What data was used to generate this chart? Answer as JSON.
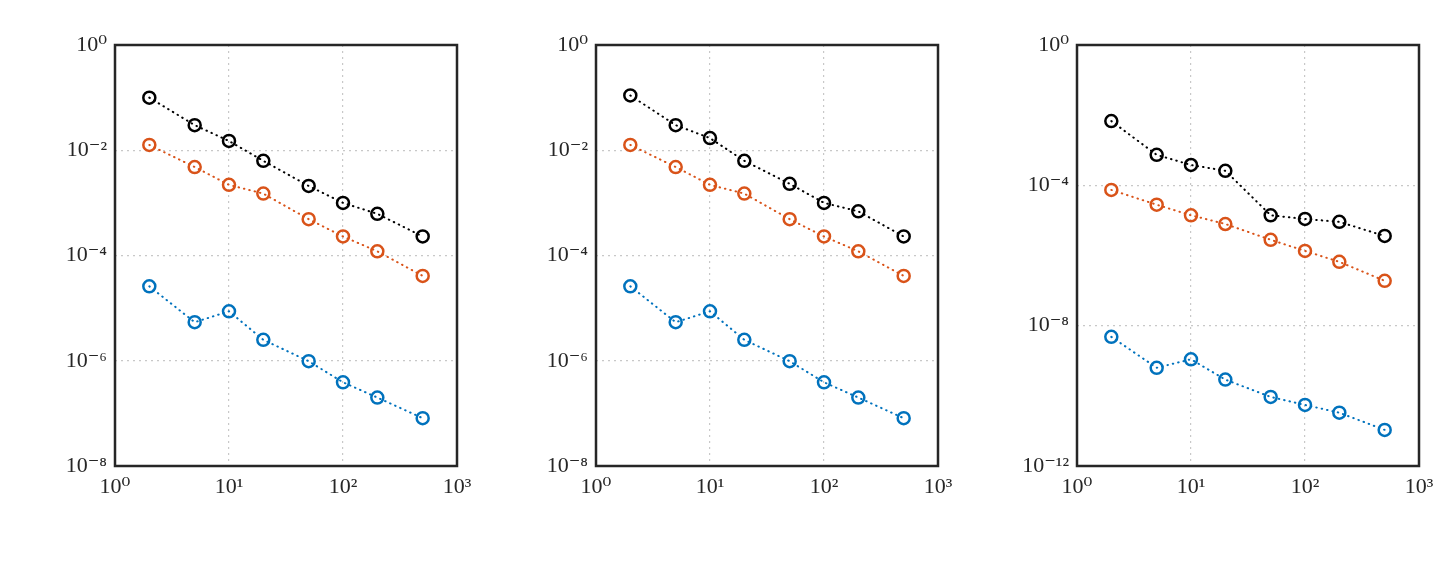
{
  "chart_data": [
    {
      "type": "line",
      "log": "xy",
      "grid": true,
      "marker": "circle",
      "line_style": "dotted",
      "legend": false,
      "x": [
        2,
        5,
        10,
        20,
        50,
        100,
        200,
        500
      ],
      "xlim": [
        1,
        1000
      ],
      "xticks": [
        {
          "value": 1,
          "label": "10⁰"
        },
        {
          "value": 10,
          "label": "10¹"
        },
        {
          "value": 100,
          "label": "10²"
        },
        {
          "value": 1000,
          "label": "10³"
        }
      ],
      "ylim": [
        1e-08,
        1
      ],
      "yticks": [
        {
          "value": 1e-08,
          "label": "10⁻⁸"
        },
        {
          "value": 1e-06,
          "label": "10⁻⁶"
        },
        {
          "value": 0.0001,
          "label": "10⁻⁴"
        },
        {
          "value": 0.01,
          "label": "10⁻²"
        },
        {
          "value": 1,
          "label": "10⁰"
        }
      ],
      "series": [
        {
          "color": "#000000",
          "values": [
            0.1,
            0.03,
            0.015,
            0.0063,
            0.0021,
            0.001,
            0.00062,
            0.00023
          ]
        },
        {
          "color": "#d95319",
          "values": [
            0.0126,
            0.0048,
            0.0022,
            0.0015,
            0.00049,
            0.00023,
            0.00012,
            4.1e-05
          ]
        },
        {
          "color": "#0072bd",
          "values": [
            2.6e-05,
            5.4e-06,
            8.7e-06,
            2.5e-06,
            9.8e-07,
            3.9e-07,
            2e-07,
            8.1e-08
          ]
        }
      ]
    },
    {
      "type": "line",
      "log": "xy",
      "grid": true,
      "marker": "circle",
      "line_style": "dotted",
      "legend": false,
      "x": [
        2,
        5,
        10,
        20,
        50,
        100,
        200,
        500
      ],
      "xlim": [
        1,
        1000
      ],
      "xticks": [
        {
          "value": 1,
          "label": "10⁰"
        },
        {
          "value": 10,
          "label": "10¹"
        },
        {
          "value": 100,
          "label": "10²"
        },
        {
          "value": 1000,
          "label": "10³"
        }
      ],
      "ylim": [
        1e-08,
        1
      ],
      "yticks": [
        {
          "value": 1e-08,
          "label": "10⁻⁸"
        },
        {
          "value": 1e-06,
          "label": "10⁻⁶"
        },
        {
          "value": 0.0001,
          "label": "10⁻⁴"
        },
        {
          "value": 0.01,
          "label": "10⁻²"
        },
        {
          "value": 1,
          "label": "10⁰"
        }
      ],
      "series": [
        {
          "color": "#000000",
          "values": [
            0.11,
            0.03,
            0.017,
            0.0063,
            0.0023,
            0.001,
            0.00069,
            0.00023
          ]
        },
        {
          "color": "#d95319",
          "values": [
            0.0126,
            0.0048,
            0.0022,
            0.0015,
            0.00049,
            0.00023,
            0.00012,
            4.1e-05
          ]
        },
        {
          "color": "#0072bd",
          "values": [
            2.6e-05,
            5.4e-06,
            8.7e-06,
            2.5e-06,
            9.8e-07,
            3.9e-07,
            2e-07,
            8.1e-08
          ]
        }
      ]
    },
    {
      "type": "line",
      "log": "xy",
      "grid": true,
      "marker": "circle",
      "line_style": "dotted",
      "legend": false,
      "x": [
        2,
        5,
        10,
        20,
        50,
        100,
        200,
        500
      ],
      "xlim": [
        1,
        1000
      ],
      "xticks": [
        {
          "value": 1,
          "label": "10⁰"
        },
        {
          "value": 10,
          "label": "10¹"
        },
        {
          "value": 100,
          "label": "10²"
        },
        {
          "value": 1000,
          "label": "10³"
        }
      ],
      "ylim": [
        1e-12,
        1
      ],
      "yticks": [
        {
          "value": 1e-12,
          "label": "10⁻¹²"
        },
        {
          "value": 1e-08,
          "label": "10⁻⁸"
        },
        {
          "value": 0.0001,
          "label": "10⁻⁴"
        },
        {
          "value": 1,
          "label": "10⁰"
        }
      ],
      "series": [
        {
          "color": "#000000",
          "values": [
            0.0068,
            0.00074,
            0.00038,
            0.00026,
            1.4e-05,
            1.1e-05,
            9.1e-06,
            3.6e-06
          ]
        },
        {
          "color": "#d95319",
          "values": [
            7.4e-05,
            2.8e-05,
            1.4e-05,
            7.9e-06,
            2.8e-06,
            1.35e-06,
            6.6e-07,
            1.9e-07
          ]
        },
        {
          "color": "#0072bd",
          "values": [
            4.8e-09,
            6.3e-10,
            1.1e-09,
            2.9e-10,
            9.3e-11,
            5.5e-11,
            3.3e-11,
            1.07e-11
          ]
        }
      ]
    }
  ]
}
